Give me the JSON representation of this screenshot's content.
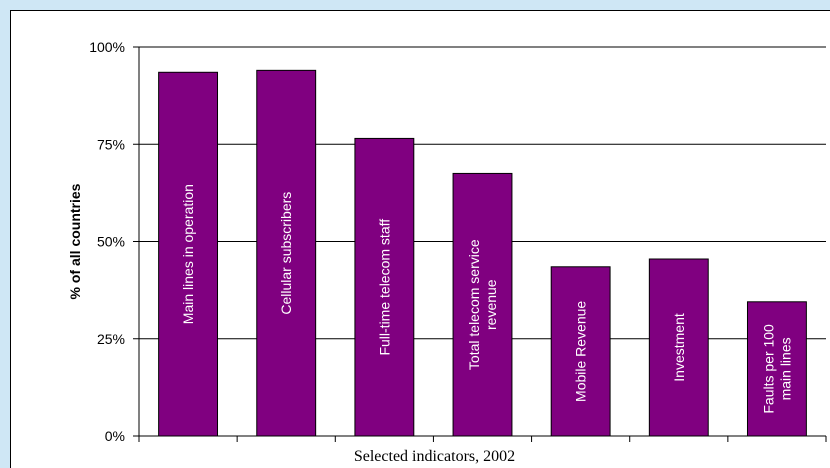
{
  "chart_data": {
    "type": "bar",
    "categories": [
      [
        "Main lines in operation"
      ],
      [
        "Cellular subscribers"
      ],
      [
        "Full-time telecom staff"
      ],
      [
        "Total telecom service",
        "revenue"
      ],
      [
        "Mobile Revenue"
      ],
      [
        "Investment"
      ],
      [
        "Faults per 100",
        "main lines"
      ]
    ],
    "values": [
      93.5,
      94,
      76.5,
      67.5,
      43.5,
      45.5,
      34.5
    ],
    "ylabel": "% of all countries",
    "xlabel": "Selected indicators, 2002",
    "ylim": [
      0,
      100
    ],
    "yticks": [
      "0%",
      "25%",
      "50%",
      "75%",
      "100%"
    ],
    "ytick_values": [
      0,
      25,
      50,
      75,
      100
    ],
    "grid": true,
    "bar_color": "#800080",
    "background_color": "#cfe7f5"
  }
}
